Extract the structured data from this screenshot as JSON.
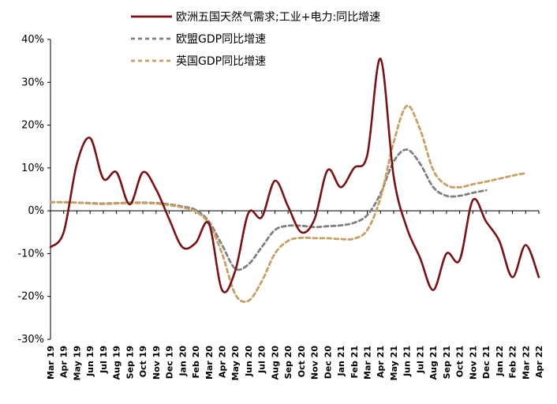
{
  "chart_data": {
    "type": "line",
    "title": "",
    "xlabel": "",
    "ylabel": "",
    "ylim": [
      -30,
      40
    ],
    "y_unit": "%",
    "y_ticks": [
      "40%",
      "30%",
      "20%",
      "10%",
      "0%",
      "-10%",
      "-20%",
      "-30%"
    ],
    "grid": false,
    "legend_position": "top",
    "categories": [
      "Mar 19",
      "Apr 19",
      "May 19",
      "Jun 19",
      "Jul 19",
      "Aug 19",
      "Sep 19",
      "Oct 19",
      "Nov 19",
      "Dec 19",
      "Jan 20",
      "Feb 20",
      "Mar 20",
      "Apr 20",
      "May 20",
      "Jun 20",
      "Jul 20",
      "Aug 20",
      "Sep 20",
      "Oct 20",
      "Nov 20",
      "Dec 20",
      "Jan 21",
      "Feb 21",
      "Mar 21",
      "Apr 21",
      "May 21",
      "Jun 21",
      "Jul 21",
      "Aug 21",
      "Sep 21",
      "Oct 21",
      "Nov 21",
      "Dec 21",
      "Jan 22",
      "Feb 22",
      "Mar 22",
      "Apr 22"
    ],
    "tick_labels": [
      "Mar 19",
      "Apr 19",
      "May 19",
      "Jun 19",
      "Jul 19",
      "Aug 19",
      "Sep 19",
      "Oct 19",
      "Nov 19",
      "Dec 19",
      "Jan 20",
      "Feb 20",
      "Mar 20",
      "Apr 20",
      "May 20",
      "Jun 20",
      "Jul 20",
      "Aug 20",
      "Sep 20",
      "Oct 20",
      "Nov 20",
      "Dec 20",
      "Jan 21",
      "Feb 21",
      "Mar 21",
      "Apr 21",
      "May 21",
      "Jun 21",
      "Jul 21",
      "Aug 21",
      "Sep 21",
      "Oct 21",
      "Nov 21",
      "Dec 21",
      "Jan 22",
      "Feb 22",
      "Mar 22",
      "Apr 22"
    ],
    "series": [
      {
        "name": "欧洲五国天然气需求;工业+电力:同比增速",
        "color": "#7b1113",
        "dash": "solid",
        "values": [
          -8.5,
          -5.0,
          11.0,
          17.0,
          7.5,
          9.0,
          1.5,
          9.0,
          5.0,
          -2.0,
          -8.5,
          -7.5,
          -3.0,
          -18.5,
          -14.0,
          -0.5,
          -1.5,
          7.0,
          1.0,
          -5.0,
          -2.0,
          9.5,
          5.5,
          10.0,
          13.0,
          35.5,
          8.0,
          -4.0,
          -11.0,
          -18.5,
          -10.0,
          -11.5,
          2.5,
          -2.5,
          -7.0,
          -15.5,
          -8.0,
          -15.5
        ]
      },
      {
        "name": "欧盟GDP同比增速",
        "color": "#808080",
        "dash": "dashed",
        "values": [
          2.0,
          2.0,
          1.9,
          1.8,
          1.7,
          1.8,
          1.9,
          1.9,
          1.8,
          1.5,
          1.0,
          0.2,
          -2.5,
          -8.0,
          -13.5,
          -12.5,
          -8.5,
          -4.5,
          -3.5,
          -3.5,
          -3.8,
          -3.6,
          -3.4,
          -2.8,
          -1.0,
          4.0,
          11.5,
          14.3,
          11.0,
          5.5,
          3.5,
          3.5,
          4.2,
          4.8,
          null,
          null,
          null,
          null
        ]
      },
      {
        "name": "英国GDP同比增速",
        "color": "#c9a063",
        "dash": "dashed",
        "values": [
          2.0,
          2.0,
          1.9,
          1.7,
          1.6,
          1.7,
          1.8,
          1.8,
          1.7,
          1.3,
          0.8,
          -0.2,
          -3.0,
          -10.0,
          -19.5,
          -21.0,
          -16.5,
          -10.0,
          -7.0,
          -6.3,
          -6.4,
          -6.4,
          -6.6,
          -6.5,
          -4.5,
          3.0,
          16.0,
          24.5,
          19.0,
          9.5,
          6.0,
          5.5,
          6.2,
          6.8,
          7.5,
          8.2,
          8.8,
          null
        ]
      }
    ]
  }
}
